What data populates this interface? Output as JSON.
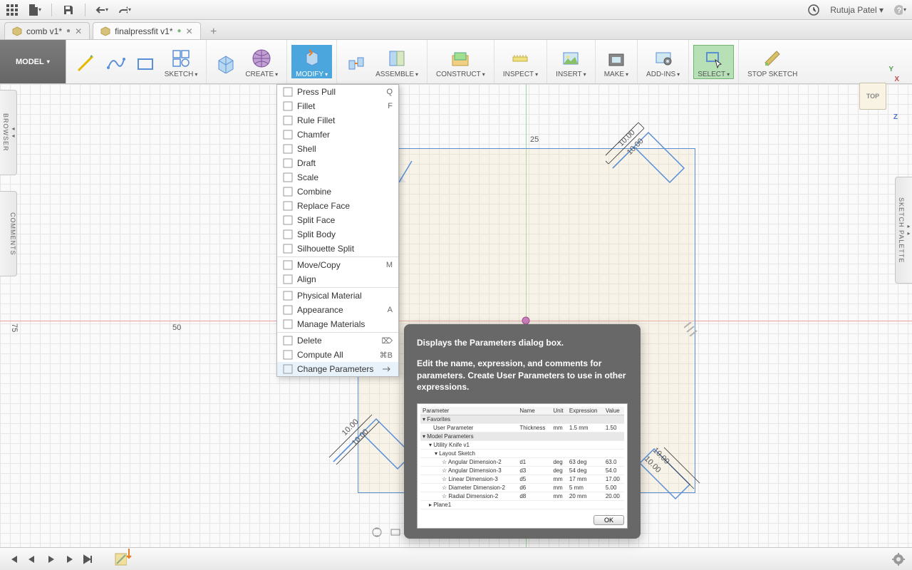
{
  "menubar": {
    "user": "Rutuja Patel"
  },
  "tabs": [
    {
      "title": "comb v1*",
      "active": false,
      "modified": true
    },
    {
      "title": "finalpressfit v1*",
      "active": true,
      "modified": true
    }
  ],
  "model_button": "MODEL",
  "toolbar_groups": [
    {
      "label": "SKETCH"
    },
    {
      "label": "CREATE"
    },
    {
      "label": "MODIFY",
      "open": true
    },
    {
      "label": "ASSEMBLE"
    },
    {
      "label": "CONSTRUCT"
    },
    {
      "label": "INSPECT"
    },
    {
      "label": "INSERT"
    },
    {
      "label": "MAKE"
    },
    {
      "label": "ADD-INS"
    },
    {
      "label": "SELECT",
      "selected": true
    },
    {
      "label": "STOP SKETCH"
    }
  ],
  "modify_menu": [
    {
      "label": "Press Pull",
      "shortcut": "Q",
      "type": "item"
    },
    {
      "label": "Fillet",
      "shortcut": "F",
      "type": "item"
    },
    {
      "label": "Rule Fillet",
      "type": "item"
    },
    {
      "label": "Chamfer",
      "type": "item"
    },
    {
      "label": "Shell",
      "type": "item"
    },
    {
      "label": "Draft",
      "type": "item"
    },
    {
      "label": "Scale",
      "type": "item"
    },
    {
      "label": "Combine",
      "type": "item"
    },
    {
      "label": "Replace Face",
      "type": "item"
    },
    {
      "label": "Split Face",
      "type": "item"
    },
    {
      "label": "Split Body",
      "type": "item"
    },
    {
      "label": "Silhouette Split",
      "type": "item"
    },
    {
      "type": "sep"
    },
    {
      "label": "Move/Copy",
      "shortcut": "M",
      "type": "item"
    },
    {
      "label": "Align",
      "type": "item"
    },
    {
      "type": "sep"
    },
    {
      "label": "Physical Material",
      "type": "item"
    },
    {
      "label": "Appearance",
      "shortcut": "A",
      "type": "item"
    },
    {
      "label": "Manage Materials",
      "type": "item"
    },
    {
      "type": "sep"
    },
    {
      "label": "Delete",
      "shortcut": "⌦",
      "type": "item"
    },
    {
      "label": "Compute All",
      "shortcut": "⌘B",
      "type": "item"
    },
    {
      "label": "Change Parameters",
      "type": "item",
      "highlight": true,
      "submenu": true
    }
  ],
  "tooltip": {
    "title": "Displays the Parameters dialog box.",
    "body": "Edit the name, expression, and comments for parameters. Create User Parameters to use in other expressions.",
    "table": {
      "headers": [
        "Parameter",
        "Name",
        "Unit",
        "Expression",
        "Value"
      ],
      "favorites_label": "Favorites",
      "user_param_label": "User Parameter",
      "user_param": {
        "name": "Thickness",
        "unit": "mm",
        "expr": "1.5 mm",
        "val": "1.50"
      },
      "model_params_label": "Model Parameters",
      "model_sub": "Utility Knife v1",
      "layout_label": "Layout Sketch",
      "rows": [
        {
          "p": "Angular Dimension-2",
          "n": "d1",
          "u": "deg",
          "e": "63 deg",
          "v": "63.0"
        },
        {
          "p": "Angular Dimension-3",
          "n": "d3",
          "u": "deg",
          "e": "54 deg",
          "v": "54.0"
        },
        {
          "p": "Linear Dimension-3",
          "n": "d5",
          "u": "mm",
          "e": "17 mm",
          "v": "17.00"
        },
        {
          "p": "Diameter Dimension-2",
          "n": "d6",
          "u": "mm",
          "e": "5 mm",
          "v": "5.00"
        },
        {
          "p": "Radial Dimension-2",
          "n": "d8",
          "u": "mm",
          "e": "20 mm",
          "v": "20.00"
        }
      ],
      "plane_label": "Plane1",
      "ok": "OK"
    }
  },
  "side_panels": {
    "browser": "BROWSER",
    "comments": "COMMENTS",
    "palette": "SKETCH PALETTE"
  },
  "viewcube": {
    "face": "TOP",
    "x": "X",
    "y": "Y",
    "z": "Z"
  },
  "dimensions": {
    "d25": "25",
    "d50": "50",
    "d75": "75",
    "d10a": "10.00",
    "d10b": "10.00",
    "d10c": "10.00",
    "d10d": "10.00",
    "d10e": "10.00",
    "d10f": "10.00"
  },
  "colors": {
    "grid_minor": "#e6e6e6",
    "grid_major": "#d4d4d4",
    "axis_v": "#9ad99a",
    "axis_h": "#e8a0a0",
    "sketch_line": "#5a8fd6",
    "sketch_fill": "rgba(245,222,179,0.25)",
    "tooltip_bg": "#686868",
    "modify_bg": "#4aa6dd",
    "select_bg": "#b7e0b7"
  }
}
